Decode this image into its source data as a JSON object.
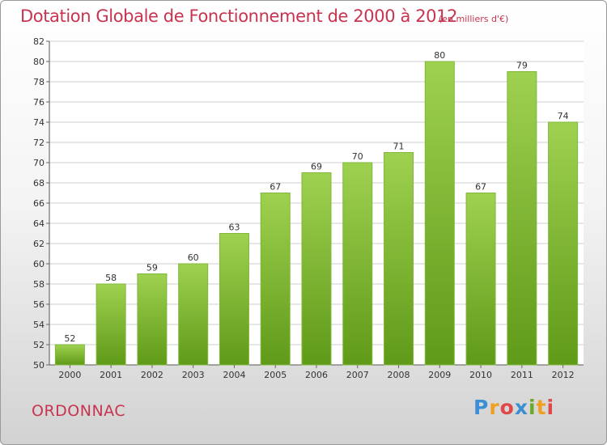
{
  "title": "Dotation Globale de Fonctionnement de 2000 à 2012",
  "subtitle": "(en milliers d'€)",
  "place": "ORDONNAC",
  "brand": {
    "letters": [
      "P",
      "r",
      "o",
      "x",
      "i",
      "t",
      "i"
    ],
    "colors": [
      "#3b8fd4",
      "#f0a020",
      "#e04848",
      "#3b8fd4",
      "#6aaa2a",
      "#f0a020",
      "#e04848"
    ]
  },
  "colors": {
    "bar_top": "#9fd150",
    "bar_bottom": "#5f9a18",
    "accent": "#c8344f",
    "grid": "#cfcfcf"
  },
  "chart_data": {
    "type": "bar",
    "categories": [
      "2000",
      "2001",
      "2002",
      "2003",
      "2004",
      "2005",
      "2006",
      "2007",
      "2008",
      "2009",
      "2010",
      "2011",
      "2012"
    ],
    "values": [
      52,
      58,
      59,
      60,
      63,
      67,
      69,
      70,
      71,
      80,
      67,
      79,
      74
    ],
    "ylim": [
      50,
      82
    ],
    "yticks": [
      50,
      52,
      54,
      56,
      58,
      60,
      62,
      64,
      66,
      68,
      70,
      72,
      74,
      76,
      78,
      80,
      82
    ],
    "grid": true,
    "legend": "none"
  }
}
